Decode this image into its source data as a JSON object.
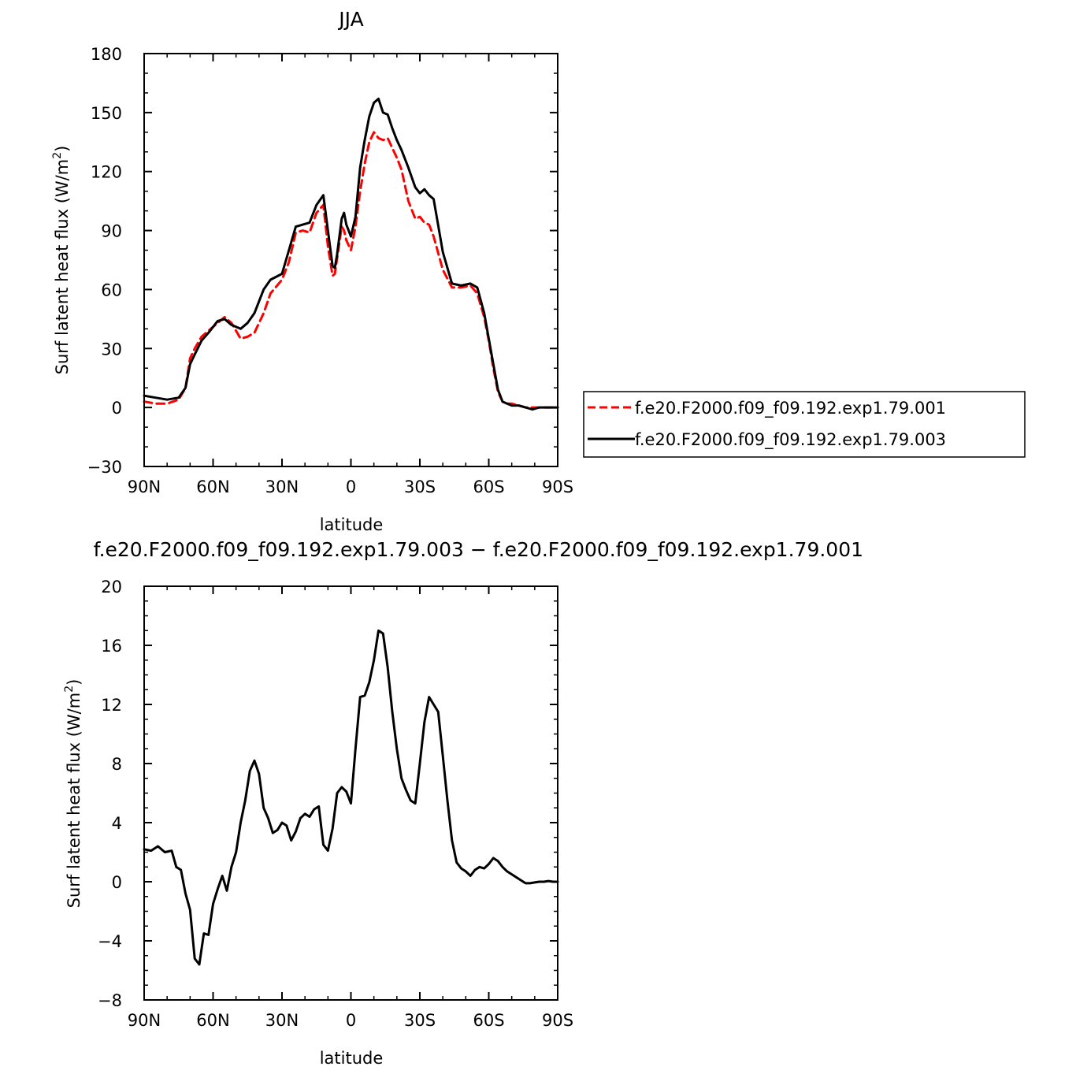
{
  "chart_data": [
    {
      "type": "line",
      "title": "JJA",
      "xlabel": "latitude",
      "ylabel": "Surf latent heat flux (W/m",
      "ylabel_sup": "2",
      "ylabel_close": ")",
      "xlim": [
        -90,
        90
      ],
      "ylim": [
        -30,
        180
      ],
      "x_ticks": [
        -90,
        -60,
        -30,
        0,
        30,
        60,
        90
      ],
      "x_tick_labels": [
        "90N",
        "60N",
        "30N",
        "0",
        "30S",
        "60S",
        "90S"
      ],
      "y_ticks": [
        -30,
        0,
        30,
        60,
        90,
        120,
        150,
        180
      ],
      "y_tick_labels": [
        "−30",
        "0",
        "30",
        "60",
        "90",
        "120",
        "150",
        "180"
      ],
      "legend": "right",
      "series": [
        {
          "name": "f.e20.F2000.f09_f09.192.exp1.79.001",
          "color": "#ff0000",
          "style": "dashed",
          "x": [
            -90,
            -85,
            -80,
            -75,
            -72,
            -70,
            -68,
            -65,
            -62,
            -58,
            -55,
            -52,
            -48,
            -45,
            -42,
            -38,
            -35,
            -30,
            -27,
            -24,
            -21,
            -18,
            -15,
            -12,
            -10,
            -8,
            -7,
            -6,
            -4,
            -3,
            -2,
            0,
            2,
            4,
            6,
            8,
            10,
            12,
            14,
            16,
            18,
            20,
            22,
            25,
            28,
            30,
            32,
            34,
            36,
            40,
            44,
            48,
            52,
            55,
            58,
            60,
            62,
            64,
            66,
            68,
            70,
            73,
            76,
            79,
            82,
            85,
            88,
            90
          ],
          "y": [
            3,
            2,
            2,
            4,
            10,
            25,
            30,
            36,
            39,
            43,
            46,
            43,
            35,
            36,
            38,
            48,
            58,
            65,
            74,
            89,
            90,
            89,
            99,
            103,
            82,
            67,
            68,
            76,
            92,
            90,
            85,
            80,
            92,
            110,
            124,
            135,
            140,
            137,
            136,
            137,
            132,
            127,
            121,
            105,
            96,
            97,
            94,
            93,
            87,
            70,
            61,
            61,
            62,
            58,
            46,
            34,
            20,
            8,
            3,
            2,
            2,
            1,
            0,
            0,
            0,
            0,
            0,
            0
          ]
        },
        {
          "name": "f.e20.F2000.f09_f09.192.exp1.79.003",
          "color": "#000000",
          "style": "solid",
          "x": [
            -90,
            -85,
            -80,
            -75,
            -72,
            -70,
            -68,
            -65,
            -62,
            -58,
            -55,
            -52,
            -48,
            -45,
            -42,
            -38,
            -35,
            -30,
            -27,
            -24,
            -21,
            -18,
            -15,
            -12,
            -10,
            -8,
            -7,
            -6,
            -4,
            -3,
            -2,
            0,
            2,
            4,
            6,
            8,
            10,
            12,
            14,
            16,
            18,
            20,
            22,
            25,
            28,
            30,
            32,
            34,
            36,
            40,
            44,
            48,
            52,
            55,
            58,
            60,
            62,
            64,
            66,
            68,
            70,
            73,
            76,
            79,
            82,
            85,
            88,
            90
          ],
          "y": [
            6,
            5,
            4,
            5,
            10,
            22,
            27,
            34,
            38,
            44,
            45,
            42,
            40,
            43,
            48,
            60,
            65,
            68,
            80,
            92,
            93,
            94,
            103,
            108,
            90,
            72,
            71,
            78,
            96,
            99,
            93,
            87,
            97,
            122,
            136,
            148,
            155,
            157,
            150,
            149,
            142,
            136,
            131,
            122,
            112,
            109,
            111,
            108,
            106,
            79,
            63,
            62,
            63,
            61,
            48,
            35,
            22,
            9,
            3,
            2,
            1,
            1,
            0,
            -1,
            0,
            0,
            0,
            0
          ]
        }
      ]
    },
    {
      "type": "line",
      "title": "f.e20.F2000.f09_f09.192.exp1.79.003 − f.e20.F2000.f09_f09.192.exp1.79.001",
      "xlabel": "latitude",
      "ylabel": "Surf latent heat flux (W/m",
      "ylabel_sup": "2",
      "ylabel_close": ")",
      "xlim": [
        -90,
        90
      ],
      "ylim": [
        -8,
        20
      ],
      "x_ticks": [
        -90,
        -60,
        -30,
        0,
        30,
        60,
        90
      ],
      "x_tick_labels": [
        "90N",
        "60N",
        "30N",
        "0",
        "30S",
        "60S",
        "90S"
      ],
      "y_ticks": [
        -8,
        -4,
        0,
        4,
        8,
        12,
        16,
        20
      ],
      "y_tick_labels": [
        "−8",
        "−4",
        "0",
        "4",
        "8",
        "12",
        "16",
        "20"
      ],
      "series": [
        {
          "color": "#000000",
          "style": "solid",
          "x": [
            -90,
            -87,
            -84,
            -81,
            -78,
            -76,
            -74,
            -72,
            -70,
            -68,
            -66,
            -64,
            -62,
            -60,
            -58,
            -56,
            -54,
            -52,
            -50,
            -48,
            -46,
            -44,
            -42,
            -40,
            -38,
            -36,
            -34,
            -32,
            -30,
            -28,
            -26,
            -24,
            -22,
            -20,
            -18,
            -16,
            -14,
            -12,
            -10,
            -8,
            -6,
            -4,
            -2,
            0,
            2,
            4,
            6,
            8,
            10,
            12,
            14,
            16,
            18,
            20,
            22,
            24,
            26,
            28,
            30,
            32,
            34,
            36,
            38,
            40,
            42,
            44,
            46,
            48,
            50,
            52,
            54,
            56,
            58,
            60,
            62,
            64,
            66,
            68,
            70,
            72,
            74,
            76,
            78,
            80,
            82,
            84,
            86,
            88,
            90
          ],
          "y": [
            2.2,
            2.1,
            2.4,
            2.0,
            2.1,
            1.0,
            0.8,
            -0.8,
            -1.9,
            -5.2,
            -5.6,
            -3.5,
            -3.6,
            -1.5,
            -0.5,
            0.4,
            -0.6,
            1.0,
            2.0,
            4.0,
            5.5,
            7.5,
            8.2,
            7.3,
            5.0,
            4.3,
            3.3,
            3.5,
            4.0,
            3.8,
            2.8,
            3.4,
            4.3,
            4.6,
            4.4,
            4.9,
            5.1,
            2.5,
            2.1,
            3.6,
            6.0,
            6.4,
            6.1,
            5.3,
            9.0,
            12.5,
            12.6,
            13.5,
            15.0,
            17.0,
            16.8,
            14.5,
            11.5,
            9.0,
            7.0,
            6.2,
            5.5,
            5.3,
            8.0,
            10.8,
            12.5,
            12.0,
            11.5,
            8.5,
            5.5,
            2.8,
            1.3,
            0.9,
            0.7,
            0.4,
            0.8,
            1.0,
            0.9,
            1.2,
            1.6,
            1.4,
            1.0,
            0.7,
            0.5,
            0.3,
            0.1,
            -0.1,
            -0.1,
            -0.05,
            0.0,
            0.0,
            0.05,
            0.0,
            0.0
          ]
        }
      ]
    }
  ]
}
